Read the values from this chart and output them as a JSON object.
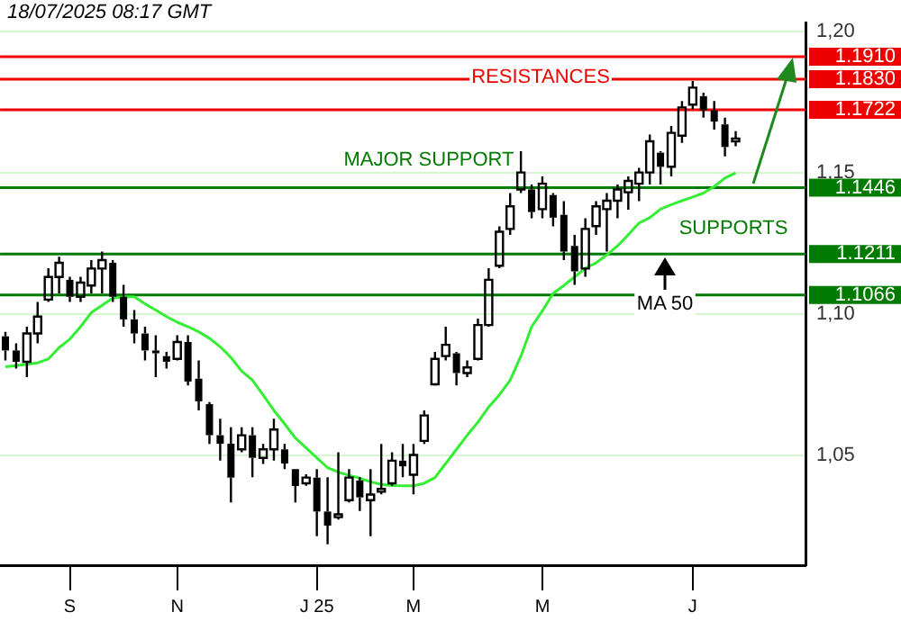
{
  "chart_data": {
    "type": "candlestick",
    "categories": [
      null,
      null,
      null,
      null,
      null,
      null,
      "S",
      null,
      null,
      null,
      null,
      null,
      null,
      null,
      null,
      null,
      "N",
      null,
      null,
      null,
      null,
      null,
      null,
      null,
      null,
      null,
      null,
      null,
      null,
      "J 25",
      null,
      null,
      null,
      null,
      null,
      null,
      null,
      null,
      "M",
      null,
      null,
      null,
      null,
      null,
      null,
      null,
      null,
      null,
      null,
      null,
      "M",
      null,
      null,
      null,
      null,
      null,
      null,
      null,
      null,
      null,
      null,
      null,
      null,
      null,
      "J",
      null,
      null,
      null,
      null,
      null,
      null,
      null,
      null,
      null,
      null
    ],
    "ohlc": [
      [
        1.092,
        1.0936,
        1.0835,
        1.087
      ],
      [
        1.087,
        1.0895,
        1.0806,
        1.083
      ],
      [
        1.083,
        1.0954,
        1.0776,
        1.093
      ],
      [
        1.093,
        1.1042,
        1.0895,
        1.099
      ],
      [
        1.105,
        1.1161,
        1.1042,
        1.113
      ],
      [
        1.113,
        1.1202,
        1.1072,
        1.118
      ],
      [
        1.112,
        1.1131,
        1.1042,
        1.106
      ],
      [
        1.106,
        1.1131,
        1.1042,
        1.111
      ],
      [
        1.11,
        1.119,
        1.1072,
        1.116
      ],
      [
        1.116,
        1.122,
        1.1072,
        1.119
      ],
      [
        1.118,
        1.119,
        1.1042,
        1.106
      ],
      [
        1.106,
        1.1102,
        1.0954,
        1.098
      ],
      [
        1.098,
        1.1013,
        1.0895,
        1.093
      ],
      [
        1.093,
        1.0954,
        1.0835,
        1.087
      ],
      [
        1.087,
        1.0924,
        1.0776,
        1.086
      ],
      [
        1.085,
        1.0865,
        1.0806,
        1.083
      ],
      [
        1.084,
        1.0924,
        1.0835,
        1.09
      ],
      [
        1.09,
        1.0924,
        1.0746,
        1.076
      ],
      [
        1.077,
        1.0835,
        1.0658,
        1.069
      ],
      [
        1.068,
        1.0687,
        1.0539,
        1.057
      ],
      [
        1.057,
        1.0628,
        1.048,
        1.054
      ],
      [
        1.054,
        1.0598,
        1.0332,
        1.042
      ],
      [
        1.052,
        1.0598,
        1.051,
        1.057
      ],
      [
        1.057,
        1.0598,
        1.0421,
        1.049
      ],
      [
        1.049,
        1.0539,
        1.0468,
        1.052
      ],
      [
        1.052,
        1.0628,
        1.048,
        1.059
      ],
      [
        1.052,
        1.0539,
        1.045,
        1.047
      ],
      [
        1.045,
        1.045,
        1.0332,
        1.039
      ],
      [
        1.04,
        1.0432,
        1.0391,
        1.042
      ],
      [
        1.042,
        1.045,
        1.0213,
        1.03
      ],
      [
        1.03,
        1.0421,
        1.0184,
        1.025
      ],
      [
        1.028,
        1.051,
        1.0272,
        1.029
      ],
      [
        1.034,
        1.045,
        1.0332,
        1.042
      ],
      [
        1.041,
        1.0421,
        1.0302,
        1.035
      ],
      [
        1.034,
        1.045,
        1.0213,
        1.036
      ],
      [
        1.037,
        1.0539,
        1.0361,
        1.038
      ],
      [
        1.04,
        1.051,
        1.0391,
        1.048
      ],
      [
        1.048,
        1.0539,
        1.0421,
        1.046
      ],
      [
        1.043,
        1.0539,
        1.0361,
        1.05
      ],
      [
        1.055,
        1.0658,
        1.0539,
        1.064
      ],
      [
        1.075,
        1.0865,
        1.0746,
        1.084
      ],
      [
        1.085,
        1.0954,
        1.0835,
        1.089
      ],
      [
        1.086,
        1.0865,
        1.0746,
        1.079
      ],
      [
        1.079,
        1.0835,
        1.0776,
        1.081
      ],
      [
        1.084,
        1.0983,
        1.0835,
        1.096
      ],
      [
        1.096,
        1.1161,
        1.0954,
        1.112
      ],
      [
        1.117,
        1.1309,
        1.1161,
        1.129
      ],
      [
        1.13,
        1.1427,
        1.1279,
        1.138
      ],
      [
        1.144,
        1.1575,
        1.1427,
        1.15
      ],
      [
        1.144,
        1.1457,
        1.1338,
        1.136
      ],
      [
        1.137,
        1.1486,
        1.1338,
        1.146
      ],
      [
        1.142,
        1.1427,
        1.1309,
        1.134
      ],
      [
        1.135,
        1.1398,
        1.119,
        1.122
      ],
      [
        1.124,
        1.1279,
        1.1102,
        1.115
      ],
      [
        1.116,
        1.1338,
        1.1131,
        1.13
      ],
      [
        1.131,
        1.1398,
        1.1279,
        1.138
      ],
      [
        1.137,
        1.1427,
        1.122,
        1.14
      ],
      [
        1.14,
        1.1457,
        1.1338,
        1.144
      ],
      [
        1.143,
        1.1486,
        1.1368,
        1.147
      ],
      [
        1.146,
        1.1516,
        1.1398,
        1.15
      ],
      [
        1.15,
        1.1634,
        1.1457,
        1.161
      ],
      [
        1.157,
        1.1575,
        1.1457,
        1.152
      ],
      [
        1.152,
        1.1664,
        1.1486,
        1.164
      ],
      [
        1.163,
        1.1753,
        1.1605,
        1.173
      ],
      [
        1.174,
        1.1824,
        1.1723,
        1.18
      ],
      [
        1.177,
        1.1782,
        1.1694,
        1.172
      ],
      [
        1.172,
        1.1753,
        1.1652,
        1.168
      ],
      [
        1.167,
        1.1694,
        1.1557,
        1.159
      ],
      [
        1.161,
        1.1646,
        1.1593,
        1.162
      ],
      null,
      null,
      null,
      null,
      null,
      null
    ],
    "color": "#000000",
    "series": [
      {
        "type": "line",
        "color": "#33ee33",
        "values": [
          1.0812,
          1.0816,
          1.0821,
          1.0826,
          1.084,
          1.088,
          1.091,
          1.0954,
          1.1004,
          1.103,
          1.1055,
          1.106,
          1.106,
          1.1035,
          1.1013,
          1.099,
          1.097,
          1.0954,
          1.0936,
          1.0913,
          1.0883,
          1.0845,
          1.0797,
          1.0765,
          1.0712,
          1.0658,
          1.061,
          1.056,
          1.0525,
          1.049,
          1.0455,
          1.0439,
          1.0428,
          1.0418,
          1.0405,
          1.0396,
          1.0392,
          1.0391,
          1.0391,
          1.04,
          1.042,
          1.047,
          1.052,
          1.057,
          1.0616,
          1.067,
          1.0713,
          1.0765,
          1.085,
          1.0954,
          1.101,
          1.1072,
          1.11,
          1.113,
          1.1161,
          1.118,
          1.1208,
          1.124,
          1.128,
          1.1321,
          1.134,
          1.137,
          1.1386,
          1.14,
          1.1413,
          1.1427,
          1.145,
          1.148,
          1.1498,
          null,
          null,
          null,
          null,
          null,
          null
        ]
      }
    ],
    "ylim": [
      1.011,
      1.203
    ],
    "yticks": [
      {
        "value": 1.05,
        "label": "1,05"
      },
      {
        "value": 1.1,
        "label": "1,10"
      },
      {
        "value": 1.15,
        "label": "1,15"
      },
      {
        "value": 1.2,
        "label": "1,20"
      }
    ],
    "grid": "y",
    "ref_lines": [
      {
        "axis": "y",
        "value": 1.191,
        "label": "1.1910",
        "color": "#ee0000"
      },
      {
        "axis": "y",
        "value": 1.183,
        "label": "1.1830",
        "color": "#ee0000"
      },
      {
        "axis": "y",
        "value": 1.1722,
        "label": "1.1722",
        "color": "#ee0000"
      },
      {
        "axis": "y",
        "value": 1.1446,
        "label": "1.1446",
        "color": "#007a00"
      },
      {
        "axis": "y",
        "value": 1.1211,
        "label": "1.1211",
        "color": "#007a00"
      },
      {
        "axis": "y",
        "value": 1.1066,
        "label": "1.1066",
        "color": "#007a00"
      }
    ],
    "annotations": [
      "18/07/2025 08:17 GMT",
      "RESISTANCES",
      "MAJOR SUPPORT",
      "SUPPORTS",
      "MA 50"
    ]
  }
}
